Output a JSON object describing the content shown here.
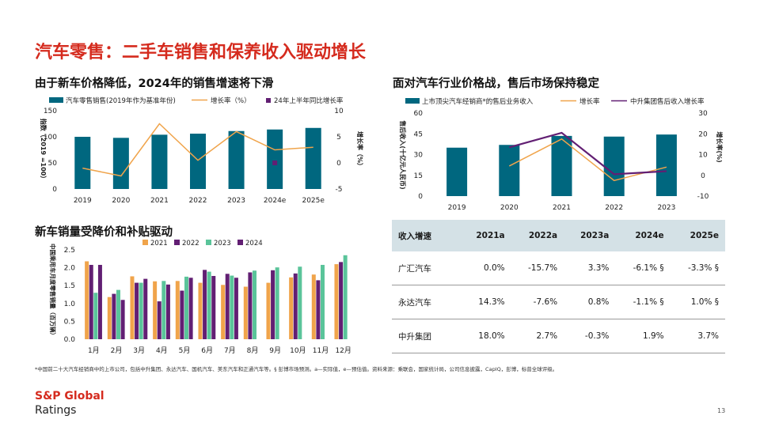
{
  "page": {
    "title": "汽车零售：二手车销售和保养收入驱动增长",
    "footnote": "*中国前二十大汽车经销商中的上市公司，包括中升集团、永达汽车、国机汽车、美东汽车和正通汽车等。§ 彭博市场预测。a—实际值，e—预估值。资料来源：乘联会，国家统计局，公司信息披露，CapIQ，彭博，标普全球评级。",
    "logo_line1": "S&P Global",
    "logo_line2": "Ratings",
    "page_number": "13"
  },
  "colors": {
    "teal": "#00677f",
    "orange": "#f0a44b",
    "purple": "#621f73",
    "green": "#5ac49a",
    "red": "#d52b1e"
  },
  "chart_data": [
    {
      "id": "retail",
      "type": "bar",
      "title": "由于新车价格降低，2024年的销售增速将下滑",
      "legend": [
        "汽车零售销售(2019年作为基准年份)",
        "增长率（%）",
        "24年上半年同比增长率"
      ],
      "categories": [
        "2019",
        "2020",
        "2021",
        "2022",
        "2023",
        "2024e",
        "2025e"
      ],
      "bars": [
        100,
        98,
        104,
        106,
        111,
        114,
        117
      ],
      "line": [
        -1,
        -2.5,
        7.5,
        0.5,
        6,
        2.5,
        3
      ],
      "points": [
        {
          "category": "2024e",
          "value": 0
        }
      ],
      "ylabel": "指数（2019 =100）",
      "y2label": "增长率（%）",
      "ylim": [
        0,
        150
      ],
      "yticks": [
        0,
        50,
        100,
        150
      ],
      "y2lim": [
        -5,
        10
      ],
      "y2ticks": [
        -5,
        0,
        5,
        10
      ]
    },
    {
      "id": "aftersales",
      "type": "bar",
      "title": "面对汽车行业价格战，售后市场保持稳定",
      "legend": [
        "上市顶尖汽车经销商*的售后业务收入",
        "增长率",
        "中升集团售后收入增长率"
      ],
      "categories": [
        "2019",
        "2020",
        "2021",
        "2022",
        "2023"
      ],
      "bars": [
        35,
        37,
        43.5,
        43,
        44.5
      ],
      "line": [
        null,
        4.5,
        17.5,
        -2.5,
        4
      ],
      "line2": [
        null,
        13.5,
        20.5,
        0.5,
        2
      ],
      "ylabel": "售后收入(十亿元人民币)",
      "y2label": "增长率(%)",
      "ylim": [
        0,
        60
      ],
      "yticks": [
        0,
        15,
        30,
        45,
        60
      ],
      "y2lim": [
        -10,
        30
      ],
      "y2ticks": [
        -10,
        0,
        10,
        20,
        30
      ]
    },
    {
      "id": "monthly",
      "type": "bar",
      "title": "新车销量受降价和补贴驱动",
      "series": [
        {
          "name": "2021",
          "values": [
            2.18,
            1.18,
            1.76,
            1.62,
            1.63,
            1.58,
            1.52,
            1.47,
            1.58,
            1.73,
            1.81,
            2.1
          ]
        },
        {
          "name": "2022",
          "values": [
            2.08,
            1.27,
            1.58,
            1.06,
            1.36,
            1.94,
            1.83,
            1.87,
            1.93,
            1.84,
            1.65,
            2.16
          ]
        },
        {
          "name": "2023",
          "values": [
            1.3,
            1.38,
            1.58,
            1.63,
            1.75,
            1.89,
            1.78,
            1.92,
            2.01,
            2.03,
            2.08,
            2.35
          ]
        },
        {
          "name": "2024",
          "values": [
            2.08,
            1.1,
            1.69,
            1.53,
            1.72,
            1.77,
            1.72,
            null,
            null,
            null,
            null,
            null
          ]
        }
      ],
      "categories": [
        "1月",
        "2月",
        "3月",
        "4月",
        "5月",
        "6月",
        "7月",
        "8月",
        "9月",
        "10月",
        "11月",
        "12月"
      ],
      "ylabel": "中国乘用车月度零售销量（百万辆）",
      "ylim": [
        0,
        2.5
      ],
      "yticks": [
        "0.0",
        "0.5",
        "1.0",
        "1.5",
        "2.0",
        "2.5"
      ]
    }
  ],
  "table": {
    "headers": [
      "收入增速",
      "2021a",
      "2022a",
      "2023a",
      "2024e",
      "2025e"
    ],
    "rows": [
      [
        "广汇汽车",
        "0.0%",
        "-15.7%",
        "3.3%",
        "-6.1% §",
        "-3.3% §"
      ],
      [
        "永达汽车",
        "14.3%",
        "-7.6%",
        "0.8%",
        "-1.1% §",
        "1.0% §"
      ],
      [
        "中升集团",
        "18.0%",
        "2.7%",
        "-0.3%",
        "1.9%",
        "3.7%"
      ]
    ]
  }
}
